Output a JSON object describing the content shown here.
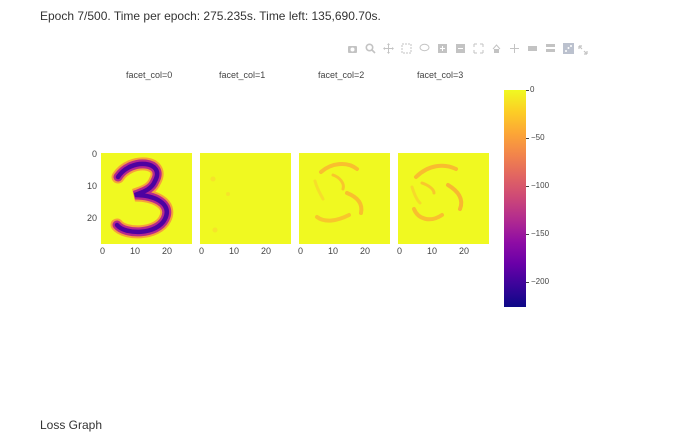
{
  "status_text": "Epoch 7/500. Time per epoch: 275.235s. Time left: 135,690.70s.",
  "modebar_icons": [
    "camera-icon",
    "zoom-icon",
    "pan-icon",
    "box-select-icon",
    "lasso-icon",
    "zoom-in-icon",
    "zoom-out-icon",
    "autoscale-icon",
    "reset-axes-icon",
    "spike-lines-icon",
    "hover-closest-icon",
    "hover-compare-icon",
    "plotly-logo-icon"
  ],
  "facets": [
    {
      "title": "facet_col=0"
    },
    {
      "title": "facet_col=1"
    },
    {
      "title": "facet_col=2"
    },
    {
      "title": "facet_col=3"
    }
  ],
  "axes": {
    "y_ticks": [
      "0",
      "10",
      "20"
    ],
    "x_ticks": [
      "0",
      "10",
      "20"
    ]
  },
  "colorbar": {
    "ticks": [
      "0",
      "−50",
      "−100",
      "−150",
      "−200"
    ],
    "tick_values": [
      0,
      -50,
      -100,
      -150,
      -200
    ],
    "range": [
      -225,
      0
    ],
    "colorscale": "plasma"
  },
  "bottom_text": "Loss Graph"
}
